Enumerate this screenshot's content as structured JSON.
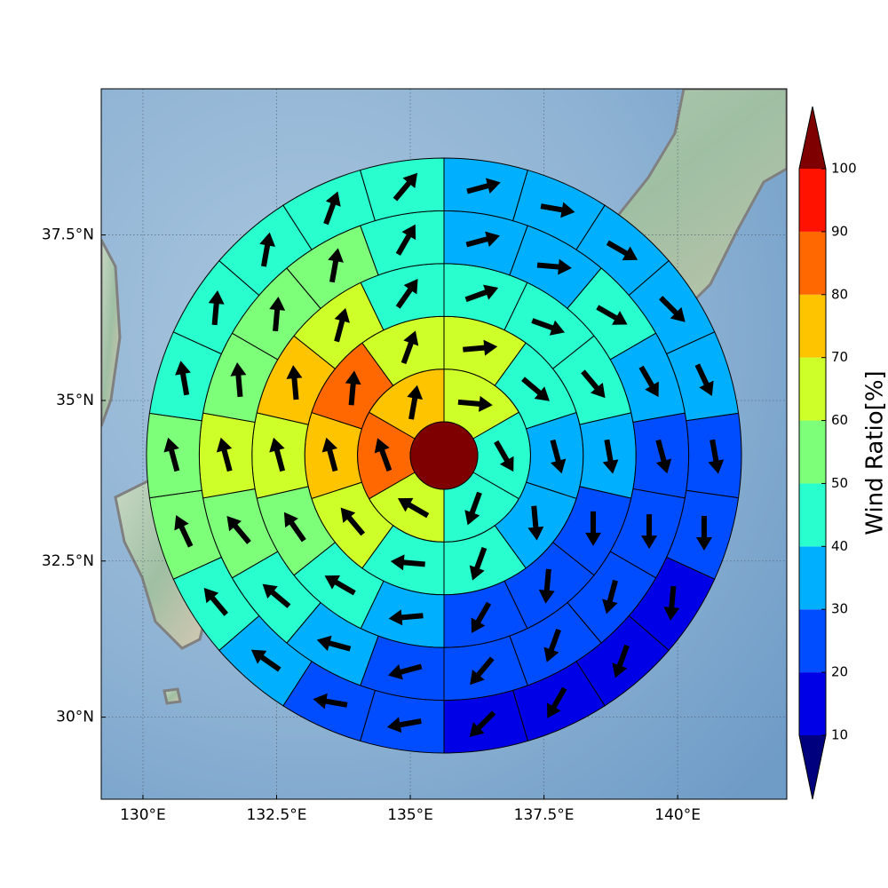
{
  "chart_data": {
    "type": "polar",
    "xlim": [
      129.22,
      142.04
    ],
    "ylim": [
      28.66,
      39.64
    ],
    "xticks": [
      {
        "value": 130,
        "label": "130°E"
      },
      {
        "value": 132.5,
        "label": "132.5°E"
      },
      {
        "value": 135,
        "label": "135°E"
      },
      {
        "value": 137.5,
        "label": "137.5°E"
      },
      {
        "value": 140,
        "label": "140°E"
      }
    ],
    "yticks": [
      {
        "value": 30,
        "label": "30°N"
      },
      {
        "value": 32.5,
        "label": "32.5°N"
      },
      {
        "value": 35,
        "label": "35°N"
      },
      {
        "value": 37.5,
        "label": "37.5°N"
      }
    ],
    "grid": true,
    "center_value": 105,
    "rings": [
      {
        "values": [
          65,
          45,
          45,
          65,
          85,
          75
        ],
        "directions": [
          95,
          150,
          200,
          300,
          340,
          10
        ]
      },
      {
        "values": [
          65,
          45,
          35,
          35,
          45,
          45,
          65,
          75,
          85,
          65
        ],
        "directions": [
          85,
          130,
          165,
          175,
          200,
          275,
          320,
          345,
          5,
          20
        ]
      },
      {
        "values": [
          45,
          45,
          45,
          35,
          25,
          25,
          25,
          35,
          45,
          55,
          65,
          75,
          65,
          45
        ],
        "directions": [
          70,
          110,
          140,
          170,
          180,
          185,
          210,
          265,
          300,
          325,
          345,
          355,
          15,
          35
        ]
      },
      {
        "values": [
          35,
          35,
          45,
          35,
          25,
          25,
          25,
          25,
          25,
          25,
          35,
          45,
          55,
          65,
          55,
          55,
          55,
          45
        ],
        "directions": [
          75,
          95,
          120,
          150,
          165,
          180,
          195,
          200,
          220,
          255,
          285,
          310,
          320,
          345,
          355,
          5,
          10,
          30
        ]
      },
      {
        "values": [
          35,
          35,
          35,
          35,
          35,
          25,
          25,
          15,
          15,
          15,
          15,
          25,
          25,
          35,
          45,
          55,
          55,
          45,
          45,
          45,
          45,
          45
        ],
        "directions": [
          75,
          100,
          120,
          135,
          155,
          170,
          180,
          185,
          200,
          210,
          225,
          260,
          280,
          305,
          320,
          335,
          345,
          350,
          5,
          10,
          20,
          40
        ]
      }
    ],
    "colorbar": {
      "label": "Wind Ratio[%]",
      "levels": [
        10,
        20,
        30,
        40,
        50,
        60,
        70,
        80,
        90,
        100
      ],
      "colors": [
        "#0000e6",
        "#004cff",
        "#00b0ff",
        "#29ffce",
        "#7dff7a",
        "#ceff29",
        "#ffc400",
        "#ff6800",
        "#ff1300"
      ],
      "under": "#00007f",
      "over": "#7f0000"
    }
  }
}
